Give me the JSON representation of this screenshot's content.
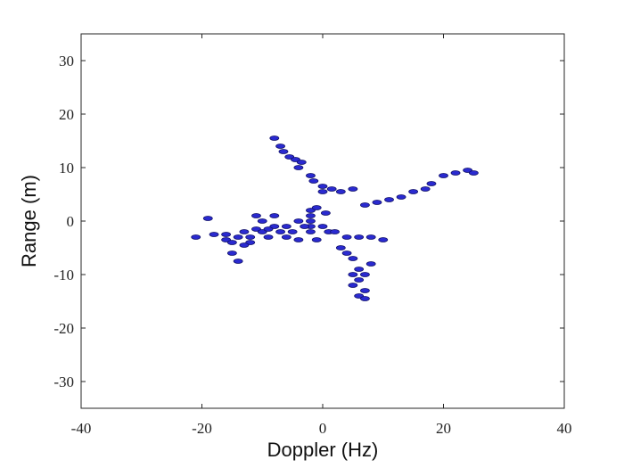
{
  "chart_data": {
    "type": "scatter",
    "xlabel": "Doppler (Hz)",
    "ylabel": "Range (m)",
    "xlim": [
      -40,
      40
    ],
    "ylim": [
      -35,
      35
    ],
    "xticks": [
      -40,
      -20,
      0,
      20,
      40
    ],
    "yticks": [
      -30,
      -20,
      -10,
      0,
      10,
      20,
      30
    ],
    "color": "#2a2ad0",
    "x": [
      -8,
      -7,
      -6.5,
      -5.5,
      -4.5,
      -3.5,
      -2,
      -1.5,
      0,
      0,
      1.5,
      3,
      5,
      -4,
      7,
      9,
      11,
      13,
      15,
      17,
      18,
      20,
      22,
      24,
      25,
      -2,
      -2,
      -2,
      -2,
      -2,
      -3,
      0,
      1,
      -1,
      0.5,
      -21,
      -18,
      -16,
      -15,
      -14,
      -13,
      -12,
      -11,
      -10,
      -9,
      -8,
      -7,
      -6,
      -5,
      -4,
      -15,
      -14,
      -19,
      -10,
      -11,
      -6,
      -4,
      -16,
      -12,
      -13,
      -9,
      2,
      4,
      6,
      8,
      10,
      3,
      4,
      5,
      6,
      8,
      5,
      7,
      6,
      5,
      7,
      6,
      7,
      -8,
      -1
    ],
    "values": [
      15.5,
      14,
      13,
      12,
      11.5,
      11,
      8.5,
      7.5,
      6.5,
      5.5,
      6,
      5.5,
      6,
      10,
      3,
      3.5,
      4,
      4.5,
      5.5,
      6,
      7,
      8.5,
      9,
      9.5,
      9,
      2,
      1,
      0,
      -1,
      -2,
      -1,
      -1,
      -2,
      2.5,
      1.5,
      -3,
      -2.5,
      -3.5,
      -4,
      -3,
      -2,
      -3,
      -1.5,
      -2,
      -3,
      -1,
      -2,
      -3,
      -2,
      -3.5,
      -6,
      -7.5,
      0.5,
      0,
      1,
      -1,
      0,
      -2.5,
      -4,
      -4.5,
      -1.5,
      -2,
      -3,
      -3,
      -3,
      -3.5,
      -5,
      -6,
      -7,
      -9,
      -8,
      -10,
      -10,
      -11,
      -12,
      -13,
      -14,
      -14.5,
      1,
      -3.5
    ]
  }
}
